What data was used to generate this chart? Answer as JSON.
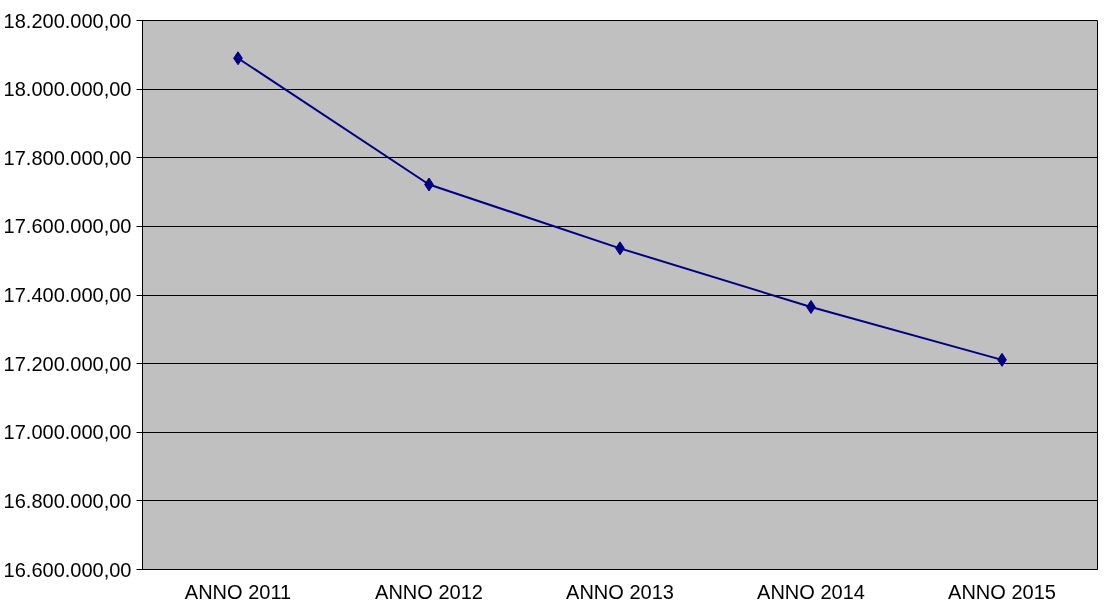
{
  "chart_data": {
    "type": "line",
    "categories": [
      "ANNO 2011",
      "ANNO 2012",
      "ANNO 2013",
      "ANNO 2014",
      "ANNO 2015"
    ],
    "series": [
      {
        "color": "#000080",
        "values": [
          18090000,
          17722000,
          17536000,
          17365000,
          17211000
        ]
      }
    ],
    "ylim": [
      16600000,
      18200000
    ],
    "yticks": [
      {
        "value": 16600000,
        "label": "16.600.000,00"
      },
      {
        "value": 16800000,
        "label": "16.800.000,00"
      },
      {
        "value": 17000000,
        "label": "17.000.000,00"
      },
      {
        "value": 17200000,
        "label": "17.200.000,00"
      },
      {
        "value": 17400000,
        "label": "17.400.000,00"
      },
      {
        "value": 17600000,
        "label": "17.600.000,00"
      },
      {
        "value": 17800000,
        "label": "17.800.000,00"
      },
      {
        "value": 18000000,
        "label": "18.000.000,00"
      },
      {
        "value": 18200000,
        "label": "18.200.000,00"
      }
    ],
    "grid": "y",
    "marker": "diamond",
    "line_style": "solid"
  }
}
